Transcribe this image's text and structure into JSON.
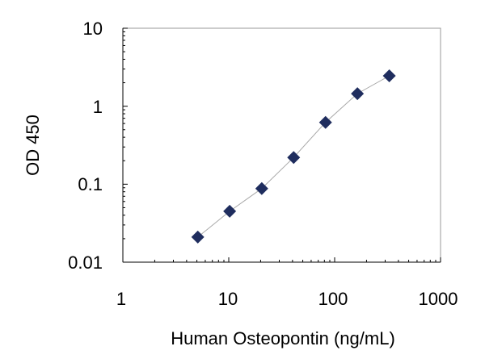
{
  "chart_data": {
    "type": "scatter",
    "title": "",
    "xlabel": "Human Osteopontin (ng/mL)",
    "ylabel": "OD 450",
    "xscale": "log",
    "yscale": "log",
    "xlim": [
      1,
      1000
    ],
    "ylim": [
      0.01,
      10
    ],
    "x_tick_labels": [
      "1",
      "10",
      "100",
      "1000"
    ],
    "y_tick_labels": [
      "10",
      "1",
      "0.1",
      "0.01"
    ],
    "grid": false,
    "legend": "none",
    "marker": "diamond",
    "series": [
      {
        "x": [
          5.1,
          10.2,
          20.5,
          41,
          82,
          164,
          328
        ],
        "y": [
          0.021,
          0.045,
          0.088,
          0.22,
          0.62,
          1.45,
          2.45
        ]
      }
    ],
    "trendline": true,
    "colors": {
      "marker": "#1f2d5e",
      "trendline": "#a8a8a8",
      "plot_border": "#9a9a9a",
      "axis": "#000000"
    }
  }
}
